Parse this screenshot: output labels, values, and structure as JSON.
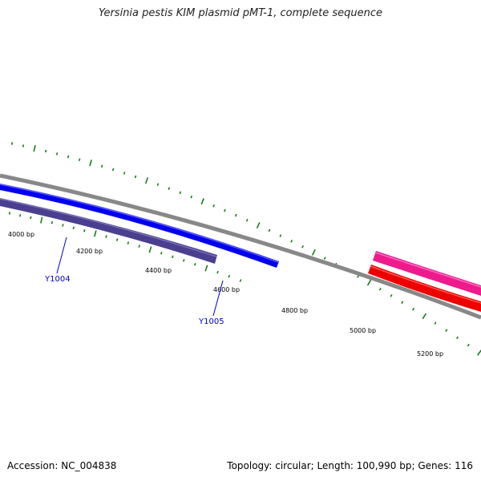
{
  "title": "Yersinia pestis KIM plasmid pMT-1, complete sequence",
  "footer": {
    "accession": "Accession: NC_004838",
    "summary": "Topology: circular; Length: 100,990 bp; Genes: 116"
  },
  "backbone_color": "#888888",
  "tick_color": "#1a7a1a",
  "position_labels": [
    "4000 bp",
    "4200 bp",
    "4400 bp",
    "4600 bp",
    "4800 bp",
    "5000 bp",
    "5200 bp"
  ],
  "features": [
    {
      "id": "blue-gene",
      "color": "#0000ee",
      "highlight": "#5a5aff"
    },
    {
      "id": "slate-gene",
      "color": "#4a3f8f",
      "highlight": "#7a70b8"
    },
    {
      "id": "pink-gene",
      "color": "#ee1b8c",
      "highlight": "#ff6ac0"
    },
    {
      "id": "red-gene",
      "color": "#ee0000",
      "highlight": "#ff5a5a"
    }
  ],
  "gene_labels": [
    {
      "text": "Y1004",
      "color": "#0000cc"
    },
    {
      "text": "Y1005",
      "color": "#0000cc"
    }
  ]
}
